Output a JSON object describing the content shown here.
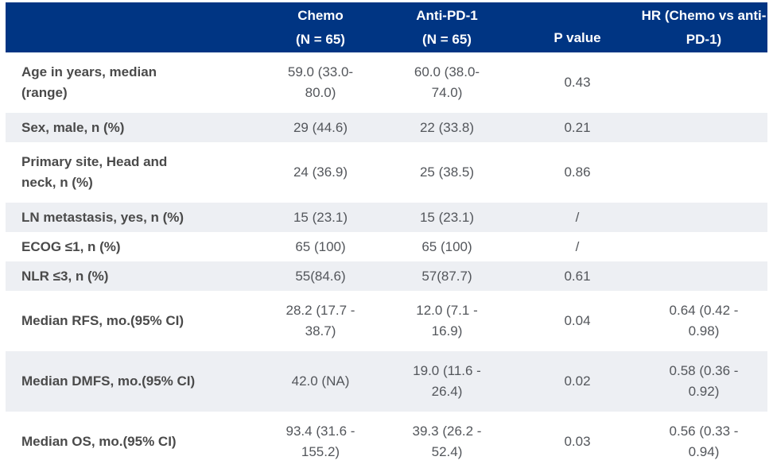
{
  "colors": {
    "header_bg": "#003583",
    "stripe_bg": "#edeff3",
    "header_text": "#ffffff",
    "label_text": "#4a4a4a",
    "value_text": "#53565b"
  },
  "table": {
    "header": {
      "col1": "",
      "col2_line1": "Chemo",
      "col2_line2": "(N = 65)",
      "col3_line1": "Anti-PD-1",
      "col3_line2": "(N = 65)",
      "col4": "P value",
      "col5_line1": "HR (Chemo vs anti-",
      "col5_line2": "PD-1)"
    },
    "rows": [
      {
        "label": "Age in years, median\n(range)",
        "chemo": "59.0  (33.0-\n80.0)",
        "anti_pd1": "60.0  (38.0-\n74.0)",
        "p_value": "0.43",
        "hr": ""
      },
      {
        "label": "Sex, male, n (%)",
        "chemo": "29  (44.6)",
        "anti_pd1": "22  (33.8)",
        "p_value": "0.21",
        "hr": ""
      },
      {
        "label": "Primary site, Head and\nneck, n (%)",
        "chemo": "24  (36.9)",
        "anti_pd1": "25  (38.5)",
        "p_value": "0.86",
        "hr": ""
      },
      {
        "label": "LN metastasis, yes, n (%)",
        "chemo": "15  (23.1)",
        "anti_pd1": "15  (23.1)",
        "p_value": "/",
        "hr": ""
      },
      {
        "label": "ECOG ≤1, n (%)",
        "chemo": "65  (100)",
        "anti_pd1": "65  (100)",
        "p_value": "/",
        "hr": ""
      },
      {
        "label": "NLR ≤3, n (%)",
        "chemo": "55(84.6)",
        "anti_pd1": "57(87.7)",
        "p_value": "0.61",
        "hr": ""
      },
      {
        "label": "Median RFS, mo.(95% CI)",
        "chemo": "28.2 (17.7 -\n38.7)",
        "anti_pd1": "12.0 (7.1 -\n16.9)",
        "p_value": "0.04",
        "hr": "0.64 (0.42 -\n0.98)"
      },
      {
        "label": "Median DMFS, mo.(95% CI)",
        "chemo": "42.0 (NA)",
        "anti_pd1": "19.0 (11.6 -\n26.4)",
        "p_value": "0.02",
        "hr": "0.58 (0.36 -\n0.92)"
      },
      {
        "label": "Median OS, mo.(95% CI)",
        "chemo": "93.4 (31.6 -\n155.2)",
        "anti_pd1": "39.3 (26.2 -\n52.4)",
        "p_value": "0.03",
        "hr": "0.56 (0.33 -\n0.94)"
      }
    ]
  }
}
